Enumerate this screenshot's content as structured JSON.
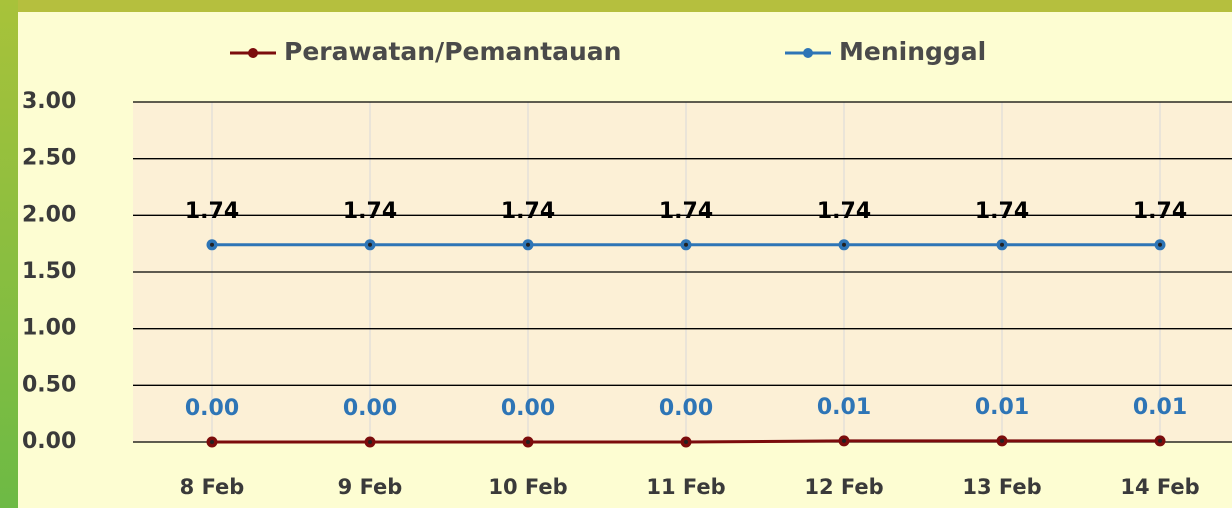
{
  "chart_data": {
    "type": "line",
    "categories": [
      "8 Feb",
      "9 Feb",
      "10 Feb",
      "11 Feb",
      "12 Feb",
      "13 Feb",
      "14 Feb"
    ],
    "series": [
      {
        "name": "Perawatan/Pemantauan",
        "color": "#7b0c0c",
        "label_color": "#2e75b6",
        "values": [
          0.0,
          0.0,
          0.0,
          0.0,
          0.01,
          0.01,
          0.01
        ],
        "value_labels": [
          "0.00",
          "0.00",
          "0.00",
          "0.00",
          "0.01",
          "0.01",
          "0.01"
        ]
      },
      {
        "name": "Meninggal",
        "color": "#2e75b6",
        "label_color": "#000000",
        "values": [
          1.74,
          1.74,
          1.74,
          1.74,
          1.74,
          1.74,
          1.74
        ],
        "value_labels": [
          "1.74",
          "1.74",
          "1.74",
          "1.74",
          "1.74",
          "1.74",
          "1.74"
        ]
      }
    ],
    "ylim": [
      0,
      3
    ],
    "yticks": [
      {
        "value": 0,
        "label": "0.00"
      },
      {
        "value": 0.5,
        "label": "0.50"
      },
      {
        "value": 1,
        "label": "1.00"
      },
      {
        "value": 1.5,
        "label": "1.50"
      },
      {
        "value": 2,
        "label": "2.00"
      },
      {
        "value": 2.5,
        "label": "2.50"
      },
      {
        "value": 3,
        "label": "3.00"
      }
    ],
    "grid": true,
    "legend": "top"
  }
}
